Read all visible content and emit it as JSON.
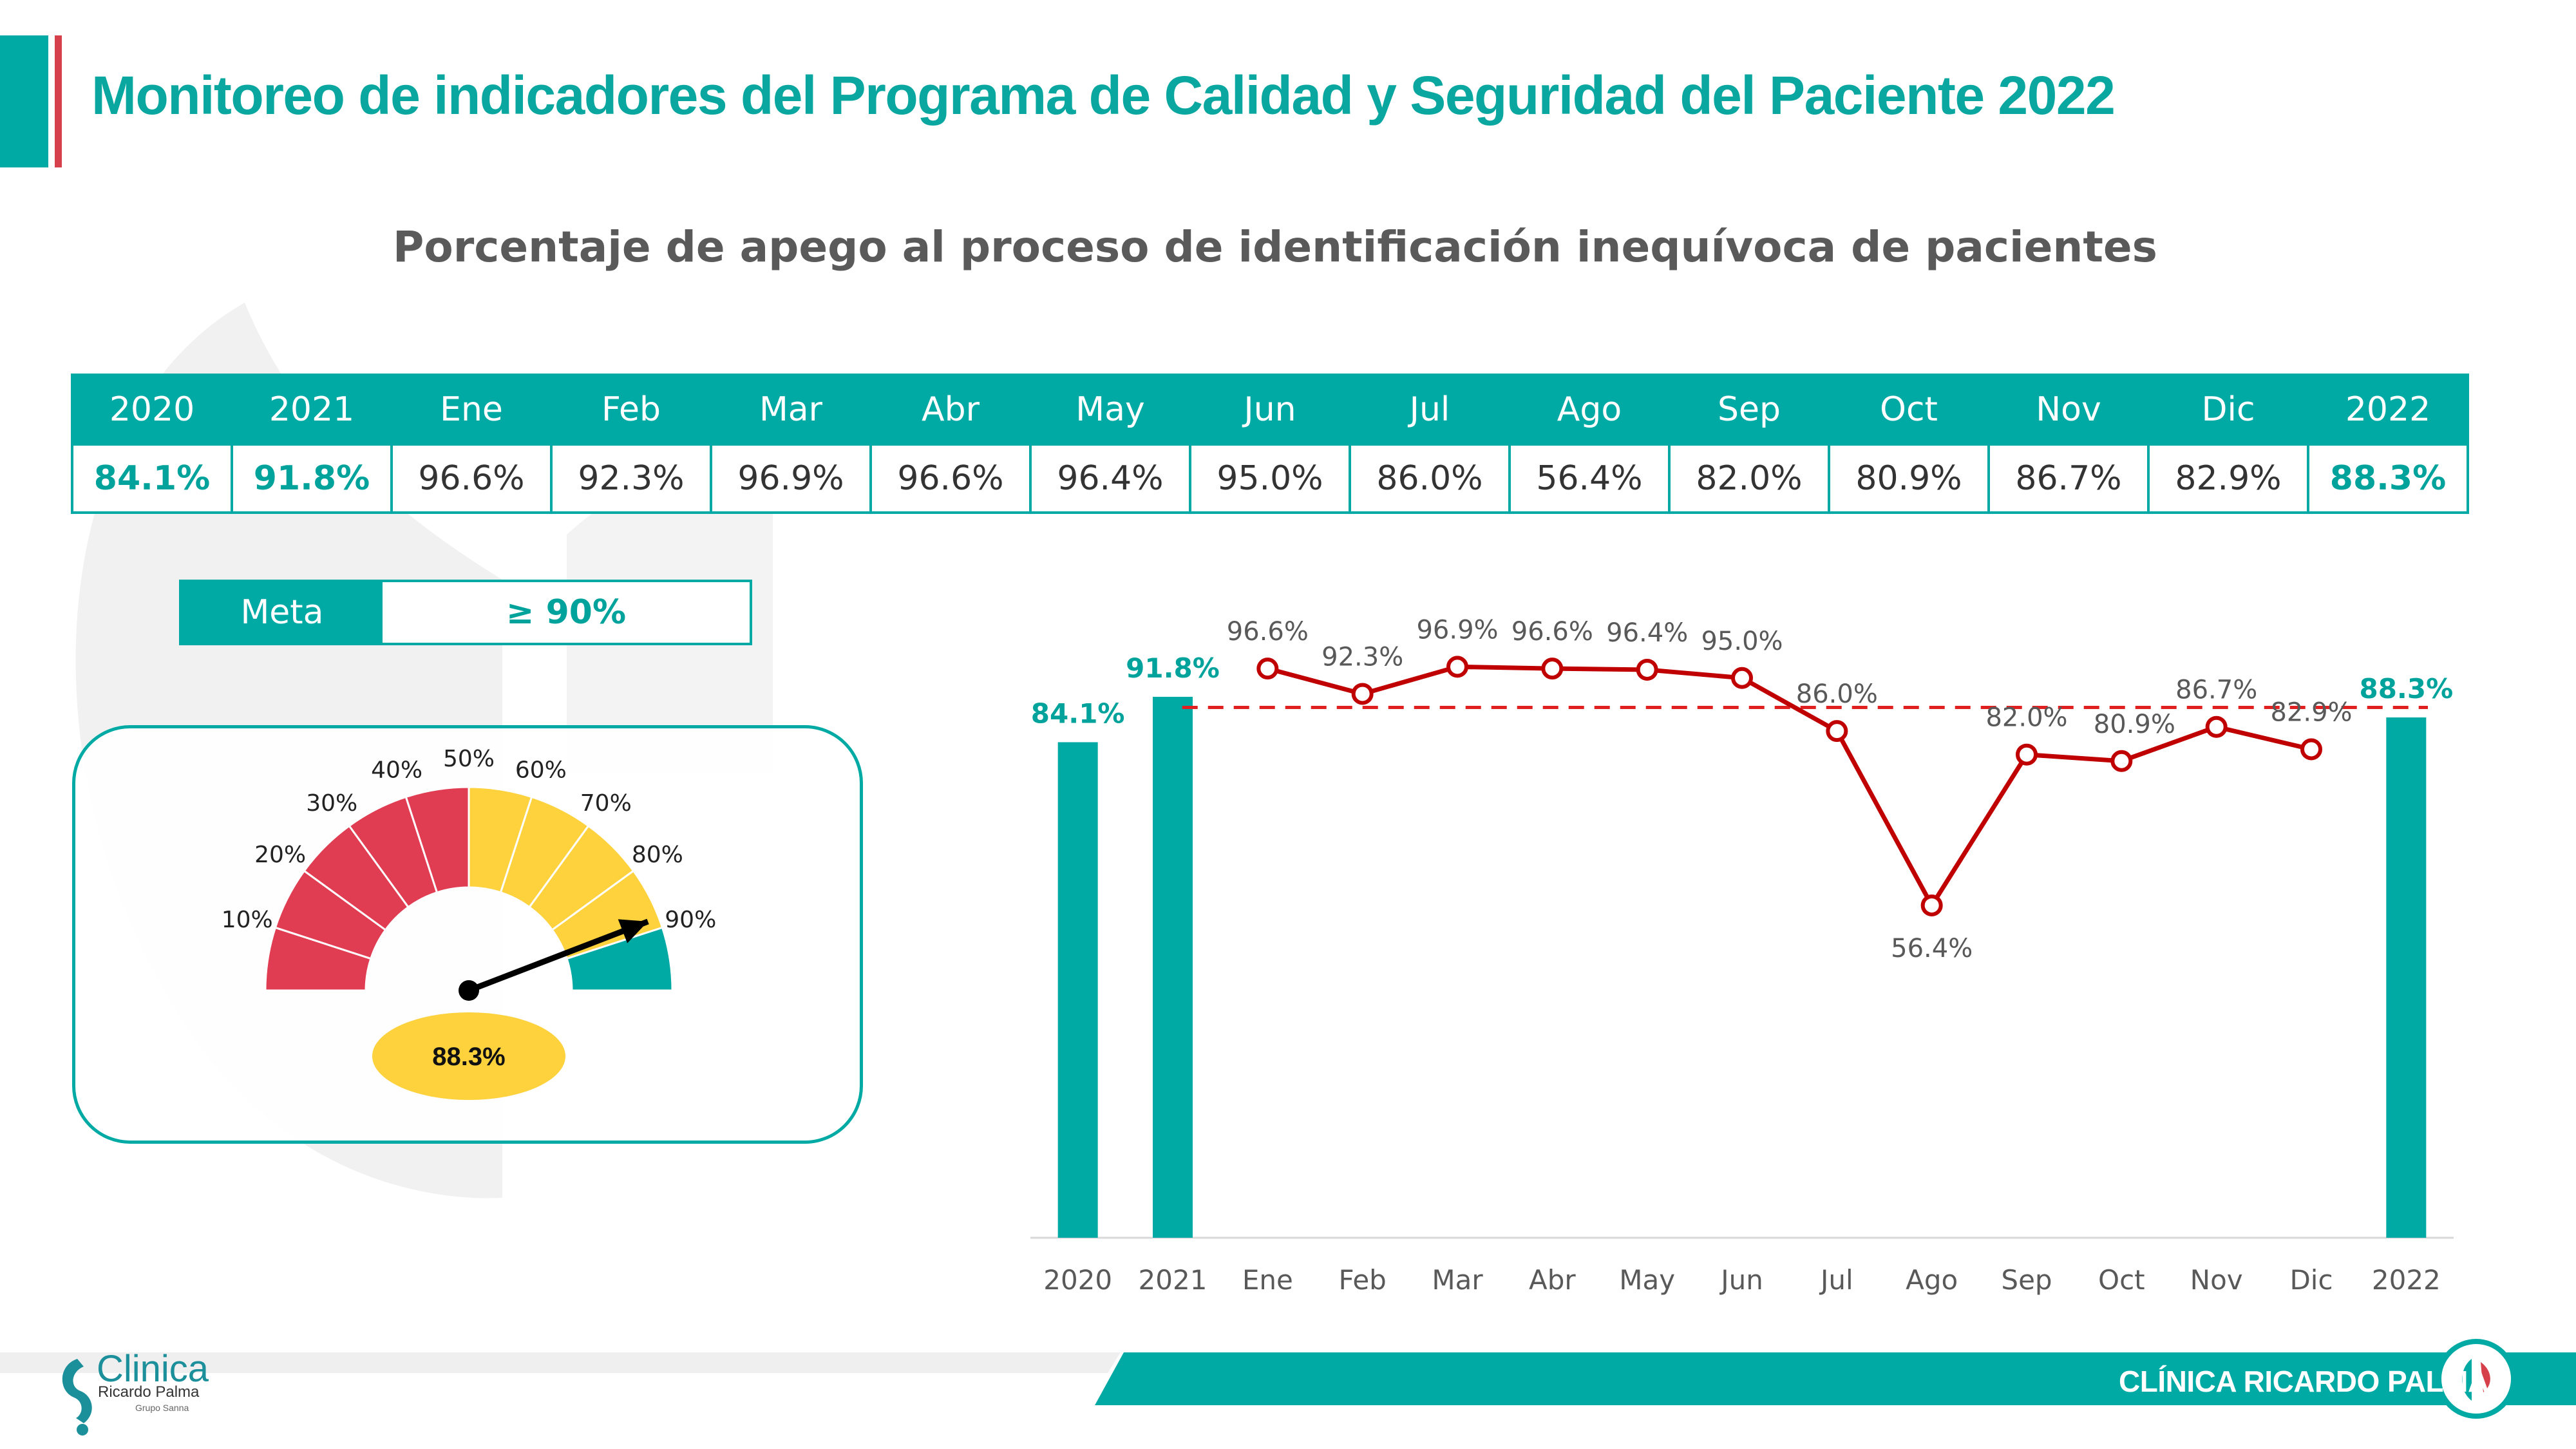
{
  "header": {
    "title": "Monitoreo de indicadores del Programa de Calidad y Seguridad del Paciente 2022",
    "subtitle": "Porcentaje de apego al proceso de identificación inequívoca de pacientes"
  },
  "summary_table": {
    "headers": [
      "2020",
      "2021",
      "Ene",
      "Feb",
      "Mar",
      "Abr",
      "May",
      "Jun",
      "Jul",
      "Ago",
      "Sep",
      "Oct",
      "Nov",
      "Dic",
      "2022"
    ],
    "values": [
      "84.1%",
      "91.8%",
      "96.6%",
      "92.3%",
      "96.9%",
      "96.6%",
      "96.4%",
      "95.0%",
      "86.0%",
      "56.4%",
      "82.0%",
      "80.9%",
      "86.7%",
      "82.9%",
      "88.3%"
    ]
  },
  "meta": {
    "label": "Meta",
    "value": "≥ 90%"
  },
  "gauge": {
    "value": 88.3,
    "value_label": "88.3%",
    "tick_labels": [
      "10%",
      "20%",
      "30%",
      "40%",
      "50%",
      "60%",
      "70%",
      "80%",
      "90%"
    ],
    "zones": [
      {
        "from": 0,
        "to": 50,
        "color": "#e03c52"
      },
      {
        "from": 50,
        "to": 90,
        "color": "#fdd23d"
      },
      {
        "from": 90,
        "to": 100,
        "color": "#00aaa4"
      }
    ]
  },
  "chart_data": {
    "type": "bar",
    "categories": [
      "2020",
      "2021",
      "Ene",
      "Feb",
      "Mar",
      "Abr",
      "May",
      "Jun",
      "Jul",
      "Ago",
      "Sep",
      "Oct",
      "Nov",
      "Dic",
      "2022"
    ],
    "ylim": [
      0,
      100
    ],
    "grid": false,
    "series": [
      {
        "type": "bar",
        "color": "#00aaa4",
        "points": [
          {
            "x": "2020",
            "y": 84.1,
            "label": "84.1%"
          },
          {
            "x": "2021",
            "y": 91.8,
            "label": "91.8%"
          },
          {
            "x": "2022",
            "y": 88.3,
            "label": "88.3%"
          }
        ]
      },
      {
        "type": "line",
        "color": "#c00000",
        "points": [
          {
            "x": "Ene",
            "y": 96.6,
            "label": "96.6%"
          },
          {
            "x": "Feb",
            "y": 92.3,
            "label": "92.3%"
          },
          {
            "x": "Mar",
            "y": 96.9,
            "label": "96.9%"
          },
          {
            "x": "Abr",
            "y": 96.6,
            "label": "96.6%"
          },
          {
            "x": "May",
            "y": 96.4,
            "label": "96.4%"
          },
          {
            "x": "Jun",
            "y": 95.0,
            "label": "95.0%"
          },
          {
            "x": "Jul",
            "y": 86.0,
            "label": "86.0%"
          },
          {
            "x": "Ago",
            "y": 56.4,
            "label": "56.4%"
          },
          {
            "x": "Sep",
            "y": 82.0,
            "label": "82.0%"
          },
          {
            "x": "Oct",
            "y": 80.9,
            "label": "80.9%"
          },
          {
            "x": "Nov",
            "y": 86.7,
            "label": "86.7%"
          },
          {
            "x": "Dic",
            "y": 82.9,
            "label": "82.9%"
          }
        ]
      }
    ],
    "reference_line": {
      "y": 90,
      "color": "#e02020",
      "style": "dashed"
    }
  },
  "footer": {
    "logo_text": "Clinica",
    "logo_subtext": "Ricardo Palma",
    "logo_tagline": "Grupo Sanna",
    "brand": "CLÍNICA RICARDO PALMA"
  },
  "colors": {
    "teal": "#00aaa4",
    "red_accent": "#d6404a",
    "line_red": "#c00000",
    "gray_text": "#595959"
  }
}
